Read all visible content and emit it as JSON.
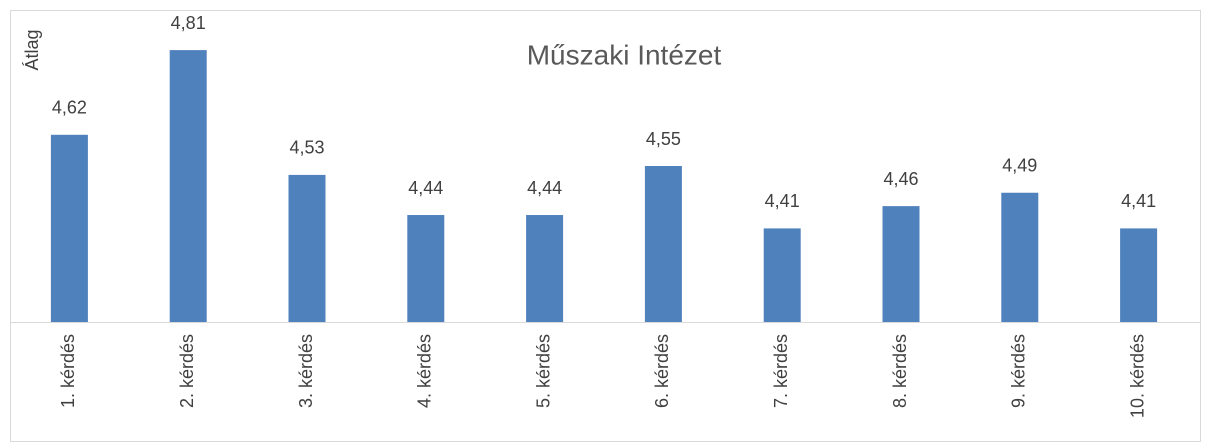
{
  "chart_data": {
    "type": "bar",
    "title": "Műszaki Intézet",
    "y_label": "Átlag",
    "categories": [
      "1. kérdés",
      "2. kérdés",
      "3. kérdés",
      "4. kérdés",
      "5. kérdés",
      "6. kérdés",
      "7. kérdés",
      "8. kérdés",
      "9. kérdés",
      "10. kérdés"
    ],
    "values": [
      4.62,
      4.81,
      4.53,
      4.44,
      4.44,
      4.55,
      4.41,
      4.46,
      4.49,
      4.41
    ],
    "value_labels": [
      "4,62",
      "4,81",
      "4,53",
      "4,44",
      "4,44",
      "4,55",
      "4,41",
      "4,46",
      "4,49",
      "4,41"
    ],
    "color": "#4f81bd",
    "ylim": [
      4.2,
      4.9
    ]
  }
}
